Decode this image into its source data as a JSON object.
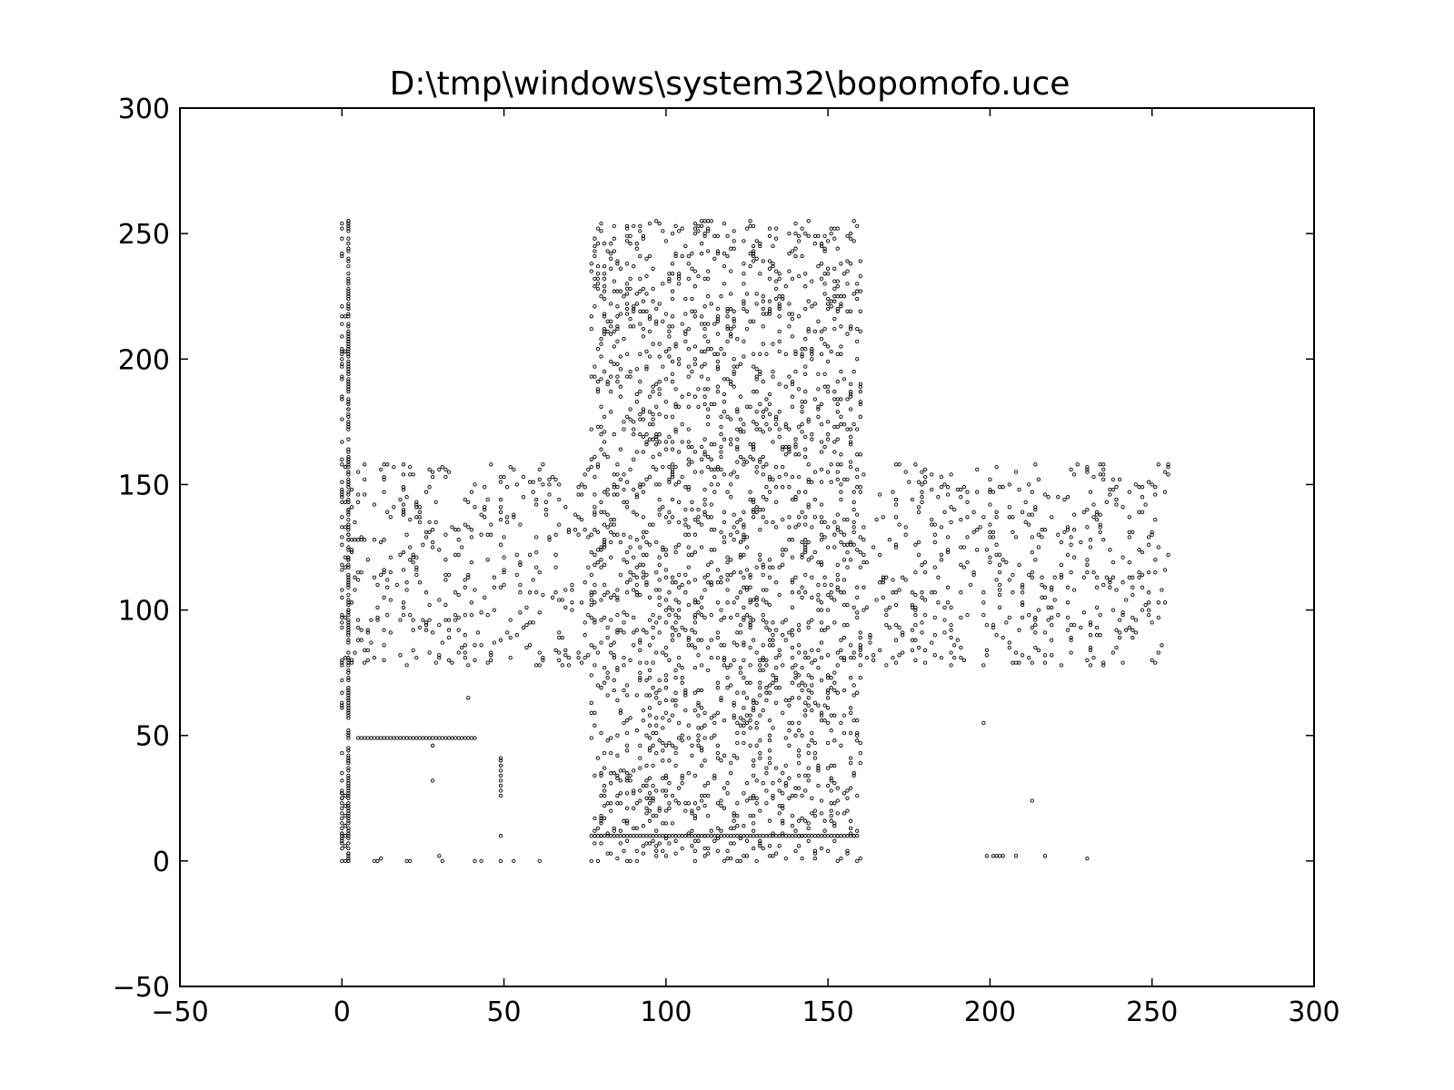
{
  "chart_data": {
    "type": "scatter",
    "title": "D:\\tmp\\windows\\system32\\bopomofo.uce",
    "xlabel": "",
    "ylabel": "",
    "xlim": [
      -50,
      300
    ],
    "ylim": [
      -50,
      300
    ],
    "x_ticks": [
      -50,
      0,
      50,
      100,
      150,
      200,
      250,
      300
    ],
    "y_ticks": [
      -50,
      0,
      50,
      100,
      150,
      200,
      250,
      300
    ],
    "x_tick_labels": [
      "−50",
      "0",
      "50",
      "100",
      "150",
      "200",
      "250",
      "300"
    ],
    "y_tick_labels": [
      "−50",
      "0",
      "50",
      "100",
      "150",
      "200",
      "250",
      "300"
    ],
    "grid": false,
    "legend": "none",
    "marker_color": "#000000",
    "marker_style": "small hollow circle",
    "regions": [
      {
        "x": [
          77,
          160
        ],
        "y": [
          0,
          255
        ],
        "density": 0.28
      },
      {
        "x": [
          0,
          77
        ],
        "y": [
          78,
          158
        ],
        "density": 0.16
      },
      {
        "x": [
          160,
          255
        ],
        "y": [
          78,
          158
        ],
        "density": 0.16
      }
    ],
    "series": [
      {
        "values": [
          [
            0,
            0
          ],
          [
            1,
            0
          ],
          [
            2,
            0
          ],
          [
            10,
            0
          ],
          [
            11,
            0
          ],
          [
            12,
            1
          ],
          [
            20,
            0
          ],
          [
            21,
            0
          ],
          [
            30,
            2
          ],
          [
            31,
            0
          ],
          [
            41,
            0
          ],
          [
            43,
            0
          ],
          [
            49,
            0
          ],
          [
            53,
            0
          ],
          [
            61,
            0
          ],
          [
            77,
            0
          ],
          [
            88,
            0
          ],
          [
            89,
            0
          ],
          [
            159,
            0
          ],
          [
            199,
            2
          ],
          [
            201,
            2
          ],
          [
            202,
            2
          ],
          [
            203,
            2
          ],
          [
            204,
            2
          ],
          [
            208,
            2
          ],
          [
            217,
            2
          ],
          [
            230,
            1
          ],
          [
            213,
            24
          ],
          [
            198,
            55
          ],
          [
            28,
            46
          ],
          [
            28,
            32
          ],
          [
            39,
            65
          ],
          [
            2,
            255
          ],
          [
            2,
            254
          ],
          [
            1,
            217
          ],
          [
            0,
            200
          ],
          [
            0,
            202
          ],
          [
            1,
            203
          ],
          [
            2,
            128
          ],
          [
            3,
            128
          ],
          [
            4,
            128
          ],
          [
            5,
            128
          ],
          [
            6,
            128
          ],
          [
            49,
            10
          ],
          [
            49,
            26
          ],
          [
            49,
            28
          ],
          [
            49,
            30
          ],
          [
            49,
            32
          ],
          [
            49,
            34
          ],
          [
            49,
            36
          ],
          [
            49,
            38
          ],
          [
            49,
            40
          ],
          [
            49,
            41
          ],
          [
            0,
            5
          ],
          [
            0,
            7
          ],
          [
            0,
            9
          ],
          [
            0,
            11
          ],
          [
            0,
            13
          ],
          [
            0,
            15
          ],
          [
            0,
            17
          ],
          [
            0,
            19
          ],
          [
            0,
            21
          ],
          [
            0,
            23
          ],
          [
            0,
            25
          ],
          [
            0,
            27
          ],
          [
            1,
            6
          ],
          [
            1,
            10
          ],
          [
            1,
            14
          ],
          [
            1,
            18
          ],
          [
            1,
            22
          ],
          [
            1,
            26
          ],
          [
            2,
            3
          ],
          [
            2,
            20
          ],
          [
            2,
            40
          ],
          [
            2,
            60
          ],
          [
            2,
            80
          ],
          [
            2,
            100
          ],
          [
            2,
            120
          ],
          [
            2,
            140
          ],
          [
            2,
            160
          ],
          [
            2,
            180
          ],
          [
            2,
            220
          ],
          [
            2,
            240
          ]
        ]
      }
    ]
  }
}
